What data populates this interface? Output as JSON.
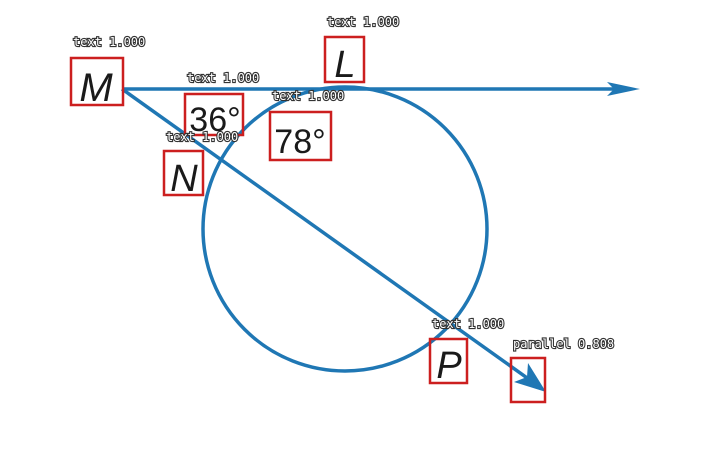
{
  "diagram": {
    "colors": {
      "line": "#1f77b4",
      "box": "#cc1f1f",
      "text": "#1a1a1a"
    },
    "points": {
      "M": "M",
      "L": "L",
      "N": "N",
      "P": "P"
    },
    "angles": {
      "a1": "36°",
      "a2": "78°"
    }
  },
  "detections": [
    {
      "label": "text 1.000"
    },
    {
      "label": "text 1.000"
    },
    {
      "label": "text 1.000"
    },
    {
      "label": "text 1.000"
    },
    {
      "label": "text 1.000"
    },
    {
      "label": "text 1.000"
    },
    {
      "label": "parallel 0.808"
    }
  ]
}
